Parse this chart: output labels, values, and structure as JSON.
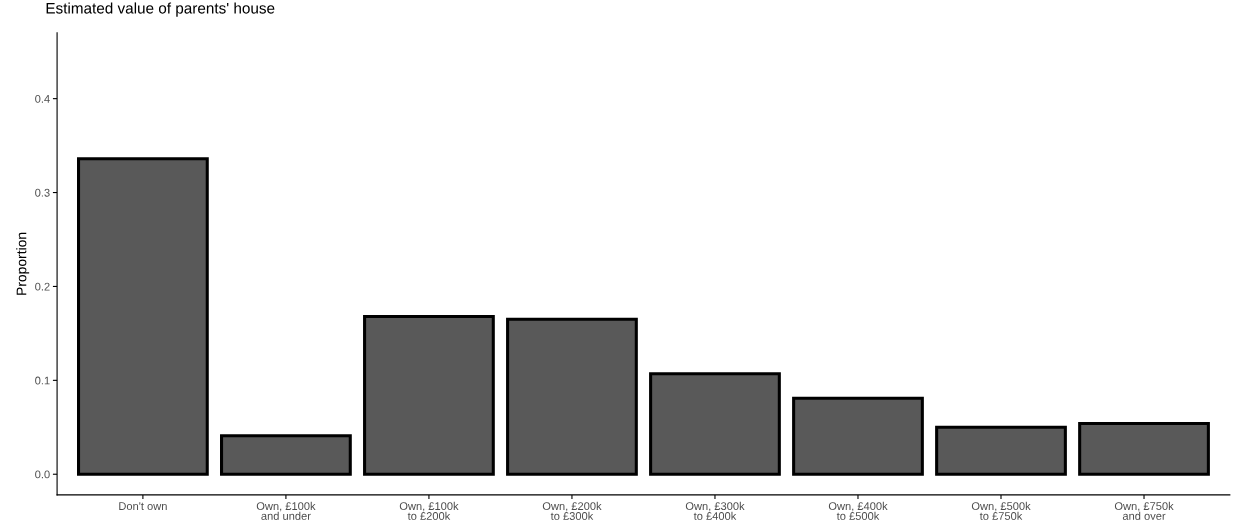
{
  "chart_data": {
    "type": "bar",
    "title": "Estimated value of parents' house",
    "ylabel": "Proportion",
    "categories": [
      "Don't own",
      "Own, £100k\nand under",
      "Own, £100k\nto £200k",
      "Own, £200k\nto £300k",
      "Own, £300k\nto £400k",
      "Own, £400k\nto £500k",
      "Own, £500k\nto £750k",
      "Own, £750k\nand over"
    ],
    "values": [
      0.336,
      0.041,
      0.168,
      0.165,
      0.107,
      0.081,
      0.05,
      0.054
    ],
    "color": "#595959",
    "ylim": [
      -0.022,
      0.47
    ],
    "yticks": [
      {
        "value": 0,
        "label": "0.0"
      },
      0.1,
      0.2,
      0.3,
      0.4
    ],
    "grid": false
  }
}
